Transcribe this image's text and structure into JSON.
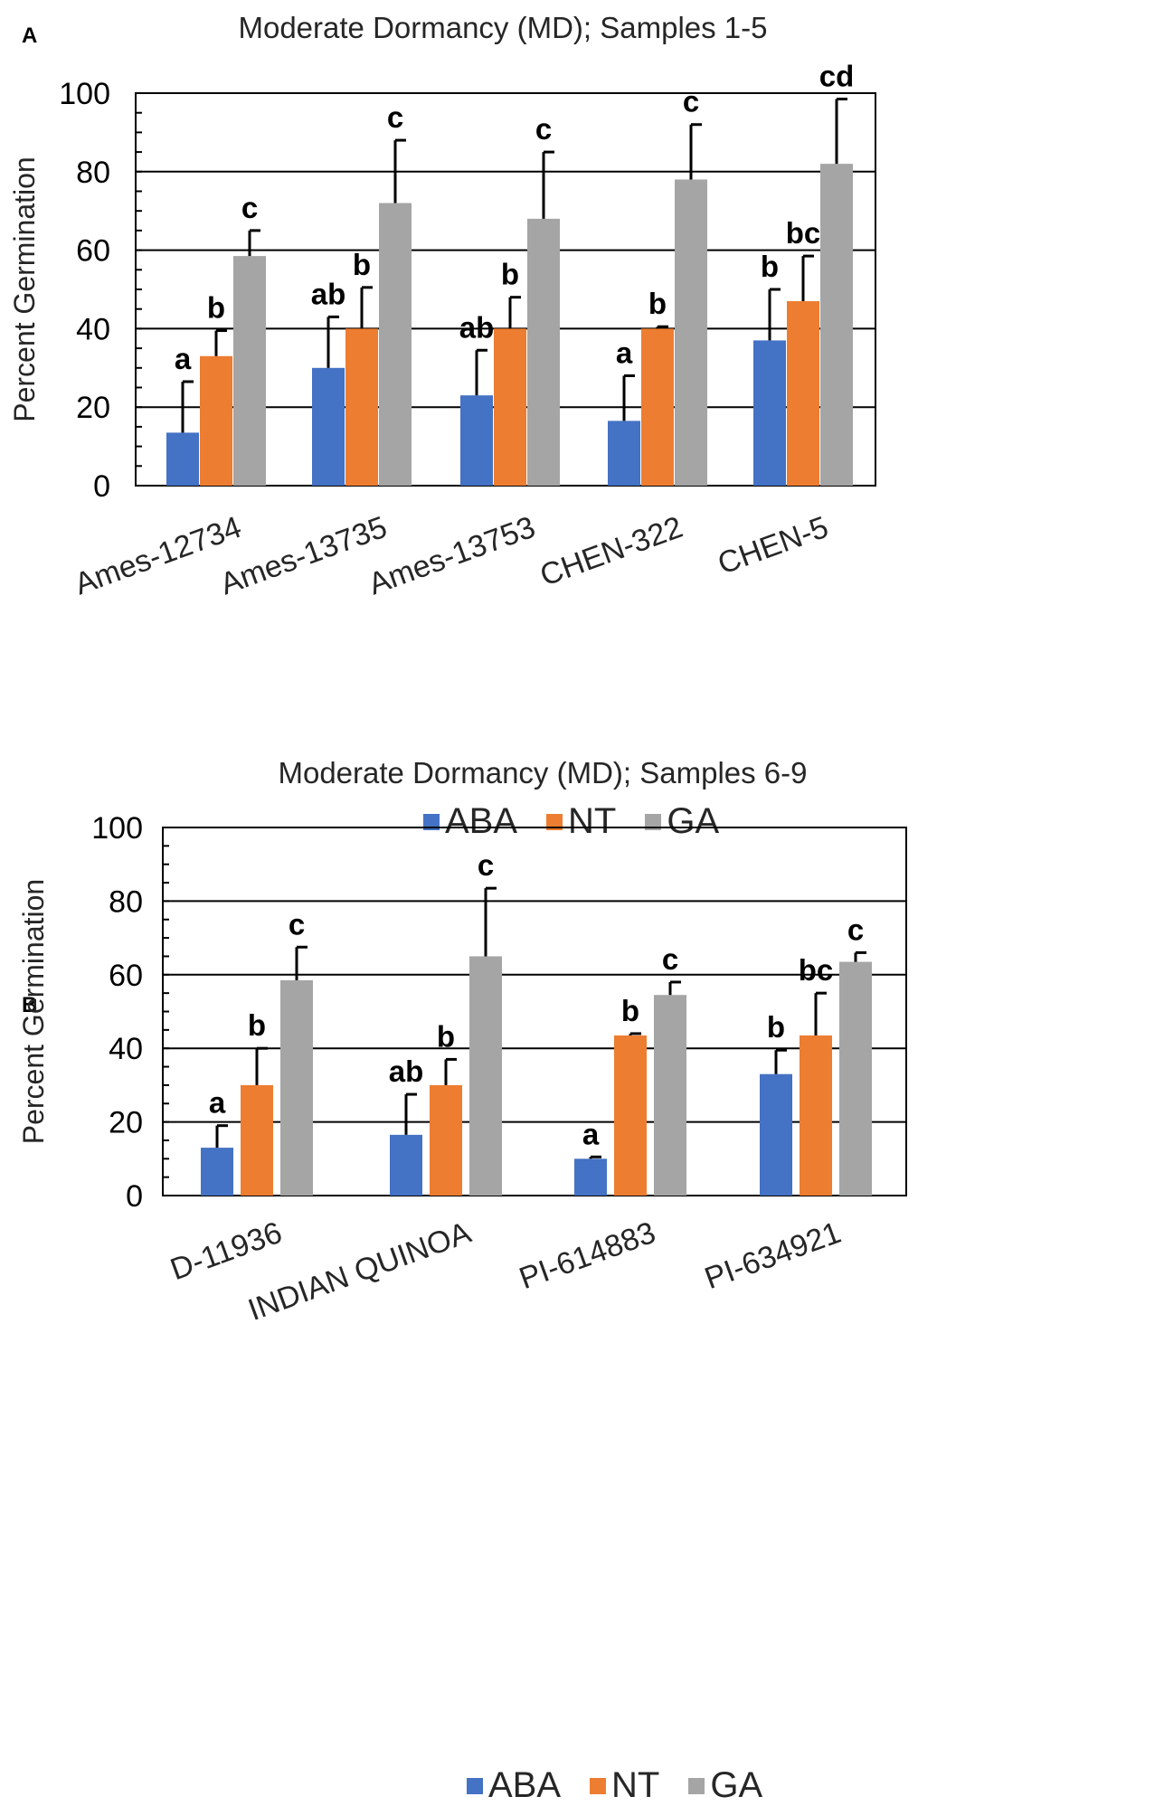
{
  "chart_data": [
    {
      "type": "bar",
      "panel": "A",
      "title": "Moderate Dormancy (MD); Samples 1-5",
      "xlabel": "",
      "ylabel": "Percent Germination",
      "ylim": [
        0,
        100
      ],
      "yticks": [
        0,
        20,
        40,
        60,
        80,
        100
      ],
      "grid": true,
      "legend_position": "bottom",
      "categories": [
        "Ames-12734",
        "Ames-13735",
        "Ames-13753",
        "CHEN-322",
        "CHEN-5"
      ],
      "series": [
        {
          "name": "ABA",
          "color": "#4472C4",
          "values": [
            13.5,
            30,
            23,
            16.5,
            37
          ],
          "errors": [
            13,
            13,
            11.5,
            11.5,
            13
          ],
          "letters": [
            "a",
            "ab",
            "ab",
            "a",
            "b"
          ]
        },
        {
          "name": "NT",
          "color": "#ED7D31",
          "values": [
            33,
            40,
            40,
            40,
            47
          ],
          "errors": [
            6.5,
            10.5,
            8,
            0.5,
            11.5
          ],
          "letters": [
            "b",
            "b",
            "b",
            "b",
            "bc"
          ]
        },
        {
          "name": "GA",
          "color": "#A5A5A5",
          "values": [
            58.5,
            72,
            68,
            78,
            82
          ],
          "errors": [
            6.5,
            16,
            17,
            14,
            16.5
          ],
          "letters": [
            "c",
            "c",
            "c",
            "c",
            "cd"
          ]
        }
      ]
    },
    {
      "type": "bar",
      "panel": "B",
      "title": "Moderate Dormancy (MD); Samples 6-9",
      "xlabel": "",
      "ylabel": "Percent Germination",
      "ylim": [
        0,
        100
      ],
      "yticks": [
        0,
        20,
        40,
        60,
        80,
        100
      ],
      "grid": true,
      "legend_position": "bottom",
      "categories": [
        "D-11936",
        "INDIAN QUINOA",
        "PI-614883",
        "PI-634921"
      ],
      "series": [
        {
          "name": "ABA",
          "color": "#4472C4",
          "values": [
            13,
            16.5,
            10,
            33
          ],
          "errors": [
            6,
            11,
            0.5,
            6.5
          ],
          "letters": [
            "a",
            "ab",
            "a",
            "b"
          ]
        },
        {
          "name": "NT",
          "color": "#ED7D31",
          "values": [
            30,
            30,
            43.5,
            43.5
          ],
          "errors": [
            10,
            7,
            0.5,
            11.5
          ],
          "letters": [
            "b",
            "b",
            "b",
            "bc"
          ]
        },
        {
          "name": "GA",
          "color": "#A5A5A5",
          "values": [
            58.5,
            65,
            54.5,
            63.5
          ],
          "errors": [
            9,
            18.5,
            3.5,
            2.5
          ],
          "letters": [
            "c",
            "c",
            "c",
            "c"
          ]
        }
      ]
    }
  ]
}
